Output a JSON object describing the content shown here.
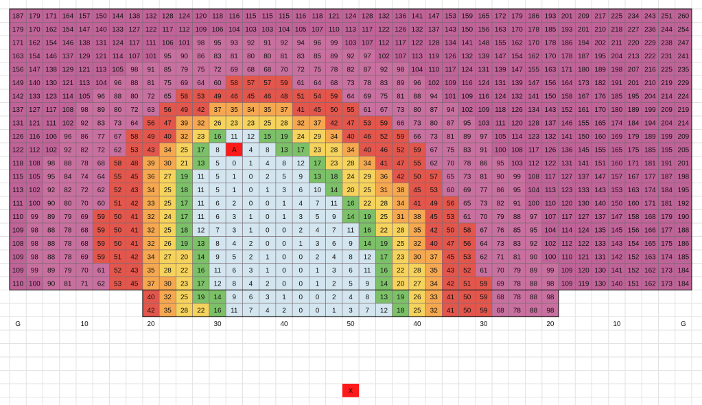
{
  "grid": {
    "rows": [
      [
        187,
        179,
        171,
        164,
        157,
        150,
        144,
        138,
        132,
        128,
        124,
        120,
        118,
        116,
        115,
        115,
        115,
        116,
        118,
        121,
        124,
        128,
        132,
        136,
        141,
        147,
        153,
        159,
        165,
        172,
        179,
        186,
        193,
        201,
        209,
        217,
        225,
        234,
        243,
        251,
        260
      ],
      [
        179,
        170,
        162,
        154,
        147,
        140,
        133,
        127,
        122,
        117,
        112,
        109,
        106,
        104,
        103,
        103,
        104,
        105,
        107,
        110,
        113,
        117,
        122,
        126,
        132,
        137,
        143,
        150,
        156,
        163,
        170,
        178,
        185,
        193,
        201,
        210,
        218,
        227,
        236,
        244,
        254
      ],
      [
        171,
        162,
        154,
        146,
        138,
        131,
        124,
        117,
        111,
        106,
        101,
        98,
        95,
        93,
        92,
        91,
        92,
        94,
        96,
        99,
        103,
        107,
        112,
        117,
        122,
        128,
        134,
        141,
        148,
        155,
        162,
        170,
        178,
        186,
        194,
        202,
        211,
        220,
        229,
        238,
        247
      ],
      [
        163,
        154,
        146,
        137,
        129,
        121,
        114,
        107,
        101,
        95,
        90,
        86,
        83,
        81,
        80,
        80,
        81,
        83,
        85,
        89,
        92,
        97,
        102,
        107,
        113,
        119,
        126,
        132,
        139,
        147,
        154,
        162,
        170,
        178,
        187,
        195,
        204,
        213,
        222,
        231,
        241
      ],
      [
        156,
        147,
        138,
        129,
        121,
        113,
        105,
        98,
        91,
        85,
        79,
        75,
        72,
        69,
        68,
        68,
        70,
        72,
        75,
        78,
        82,
        87,
        92,
        98,
        104,
        110,
        117,
        124,
        131,
        139,
        147,
        155,
        163,
        171,
        180,
        189,
        198,
        207,
        216,
        225,
        235
      ],
      [
        149,
        140,
        130,
        121,
        113,
        104,
        96,
        88,
        81,
        75,
        69,
        64,
        60,
        58,
        57,
        57,
        59,
        61,
        64,
        68,
        73,
        78,
        83,
        89,
        96,
        102,
        109,
        116,
        124,
        131,
        139,
        147,
        156,
        164,
        173,
        182,
        191,
        201,
        210,
        219,
        229
      ],
      [
        142,
        133,
        123,
        114,
        105,
        96,
        88,
        80,
        72,
        65,
        58,
        53,
        49,
        46,
        45,
        46,
        48,
        51,
        54,
        59,
        64,
        69,
        75,
        81,
        88,
        94,
        101,
        109,
        116,
        124,
        132,
        141,
        150,
        158,
        167,
        176,
        185,
        195,
        204,
        214,
        224
      ],
      [
        137,
        127,
        117,
        108,
        98,
        89,
        80,
        72,
        63,
        56,
        49,
        42,
        37,
        35,
        34,
        35,
        37,
        41,
        45,
        50,
        55,
        61,
        67,
        73,
        80,
        87,
        94,
        102,
        109,
        118,
        126,
        134,
        143,
        152,
        161,
        170,
        180,
        189,
        199,
        209,
        219
      ],
      [
        131,
        121,
        111,
        102,
        92,
        83,
        73,
        64,
        56,
        47,
        39,
        32,
        26,
        23,
        23,
        25,
        28,
        32,
        37,
        42,
        47,
        53,
        59,
        66,
        73,
        80,
        87,
        95,
        103,
        111,
        120,
        128,
        137,
        146,
        155,
        165,
        174,
        184,
        194,
        204,
        214
      ],
      [
        126,
        116,
        106,
        96,
        86,
        77,
        67,
        58,
        49,
        40,
        32,
        23,
        16,
        11,
        12,
        15,
        19,
        24,
        29,
        34,
        40,
        46,
        52,
        59,
        66,
        73,
        81,
        89,
        97,
        105,
        114,
        123,
        132,
        141,
        150,
        160,
        169,
        179,
        189,
        199,
        209
      ],
      [
        122,
        112,
        102,
        92,
        82,
        72,
        62,
        53,
        43,
        34,
        25,
        17,
        8,
        "A",
        4,
        8,
        13,
        17,
        23,
        28,
        34,
        40,
        46,
        52,
        59,
        67,
        75,
        83,
        91,
        100,
        108,
        117,
        126,
        136,
        145,
        155,
        165,
        175,
        185,
        195,
        205
      ],
      [
        118,
        108,
        98,
        88,
        78,
        68,
        58,
        48,
        39,
        30,
        21,
        13,
        5,
        0,
        1,
        4,
        8,
        12,
        17,
        23,
        28,
        34,
        41,
        47,
        55,
        62,
        70,
        78,
        86,
        95,
        103,
        112,
        122,
        131,
        141,
        151,
        160,
        171,
        181,
        191,
        201
      ],
      [
        115,
        105,
        95,
        84,
        74,
        64,
        55,
        45,
        36,
        27,
        19,
        11,
        5,
        1,
        0,
        2,
        5,
        9,
        13,
        18,
        24,
        29,
        36,
        42,
        50,
        57,
        65,
        73,
        81,
        90,
        99,
        108,
        117,
        127,
        137,
        147,
        157,
        167,
        177,
        187,
        198
      ],
      [
        113,
        102,
        92,
        82,
        72,
        62,
        52,
        43,
        34,
        25,
        18,
        11,
        5,
        1,
        0,
        1,
        3,
        6,
        10,
        14,
        20,
        25,
        31,
        38,
        45,
        53,
        60,
        69,
        77,
        86,
        95,
        104,
        113,
        123,
        133,
        143,
        153,
        163,
        174,
        184,
        195
      ],
      [
        111,
        100,
        90,
        80,
        70,
        60,
        51,
        42,
        33,
        25,
        17,
        11,
        6,
        2,
        0,
        0,
        1,
        4,
        7,
        11,
        16,
        22,
        28,
        34,
        41,
        49,
        56,
        65,
        73,
        82,
        91,
        100,
        110,
        120,
        130,
        140,
        150,
        160,
        171,
        181,
        192
      ],
      [
        110,
        99,
        89,
        79,
        69,
        59,
        50,
        41,
        32,
        24,
        17,
        11,
        6,
        3,
        1,
        0,
        1,
        3,
        5,
        9,
        14,
        19,
        25,
        31,
        38,
        45,
        53,
        61,
        70,
        79,
        88,
        97,
        107,
        117,
        127,
        137,
        147,
        158,
        168,
        179,
        190
      ],
      [
        109,
        98,
        88,
        78,
        68,
        59,
        50,
        41,
        32,
        25,
        18,
        12,
        7,
        3,
        1,
        0,
        0,
        2,
        4,
        7,
        11,
        16,
        22,
        28,
        35,
        42,
        50,
        58,
        67,
        76,
        85,
        95,
        104,
        114,
        124,
        135,
        145,
        156,
        166,
        177,
        188
      ],
      [
        108,
        98,
        88,
        78,
        68,
        59,
        50,
        41,
        32,
        26,
        19,
        13,
        8,
        4,
        2,
        0,
        0,
        1,
        3,
        6,
        9,
        14,
        19,
        25,
        32,
        40,
        47,
        56,
        64,
        73,
        83,
        92,
        102,
        112,
        122,
        133,
        143,
        154,
        165,
        175,
        186
      ],
      [
        109,
        98,
        88,
        78,
        69,
        59,
        51,
        42,
        34,
        27,
        20,
        14,
        9,
        5,
        2,
        1,
        0,
        0,
        2,
        4,
        8,
        12,
        17,
        23,
        30,
        37,
        45,
        53,
        62,
        71,
        81,
        90,
        100,
        110,
        121,
        131,
        142,
        152,
        163,
        174,
        185
      ],
      [
        109,
        99,
        89,
        79,
        70,
        61,
        52,
        43,
        35,
        28,
        22,
        16,
        11,
        6,
        3,
        1,
        0,
        0,
        1,
        3,
        6,
        11,
        16,
        22,
        28,
        35,
        43,
        52,
        61,
        70,
        79,
        89,
        99,
        109,
        120,
        130,
        141,
        152,
        162,
        173,
        184
      ],
      [
        110,
        100,
        90,
        81,
        71,
        62,
        53,
        45,
        37,
        30,
        23,
        17,
        12,
        8,
        4,
        2,
        0,
        0,
        1,
        2,
        5,
        9,
        14,
        20,
        27,
        34,
        42,
        51,
        59,
        69,
        78,
        88,
        98,
        109,
        119,
        130,
        140,
        151,
        162,
        173,
        184
      ]
    ],
    "partial_rows": [
      [
        40,
        32,
        25,
        19,
        14,
        9,
        6,
        3,
        1,
        0,
        0,
        2,
        4,
        8,
        13,
        19,
        26,
        33,
        41,
        50,
        59,
        68,
        78,
        88,
        98
      ],
      [
        42,
        35,
        28,
        22,
        16,
        11,
        7,
        4,
        2,
        0,
        0,
        1,
        3,
        7,
        12,
        18,
        25,
        32,
        41,
        50,
        59,
        68,
        78,
        88,
        98
      ]
    ]
  },
  "axis_labels": [
    "G",
    "10",
    "20",
    "30",
    "40",
    "50",
    "40",
    "30",
    "20",
    "10",
    "G"
  ],
  "marker": "X"
}
